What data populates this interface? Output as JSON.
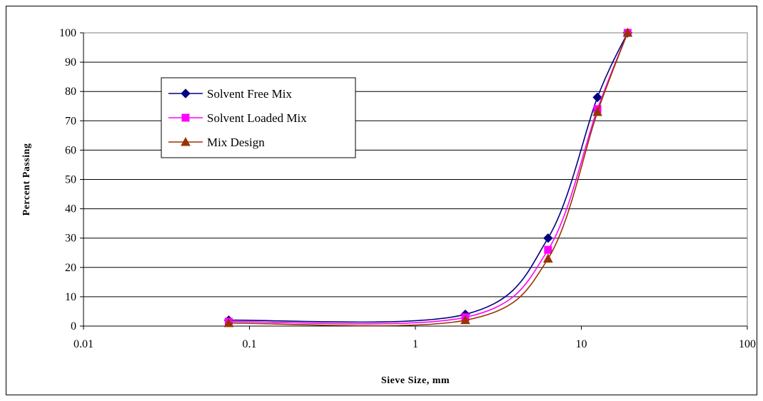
{
  "chart_data": {
    "type": "line",
    "title": "",
    "xlabel": "Sieve Size, mm",
    "ylabel": "Percent Passing",
    "x_scale": "log",
    "xlim": [
      0.01,
      100
    ],
    "ylim": [
      0,
      100
    ],
    "x_ticks": [
      "0.01",
      "0.1",
      "1",
      "10",
      "100"
    ],
    "y_ticks": [
      "0",
      "10",
      "20",
      "30",
      "40",
      "50",
      "60",
      "70",
      "80",
      "90",
      "100"
    ],
    "grid": "horizontal",
    "legend_position": "top-left",
    "series": [
      {
        "name": "Solvent Free Mix",
        "color": "#000080",
        "marker": "diamond",
        "x": [
          0.075,
          2.0,
          6.3,
          12.5,
          19.0
        ],
        "y": [
          2,
          4,
          30,
          78,
          100
        ]
      },
      {
        "name": "Solvent Loaded Mix",
        "color": "#FF00FF",
        "marker": "square",
        "x": [
          0.075,
          2.0,
          6.3,
          12.5,
          19.0
        ],
        "y": [
          1.5,
          3,
          26,
          74,
          100
        ]
      },
      {
        "name": "Mix Design",
        "color": "#993300",
        "marker": "triangle",
        "x": [
          0.075,
          2.0,
          6.3,
          12.5,
          19.0
        ],
        "y": [
          1,
          2,
          23,
          73,
          100
        ]
      }
    ]
  }
}
